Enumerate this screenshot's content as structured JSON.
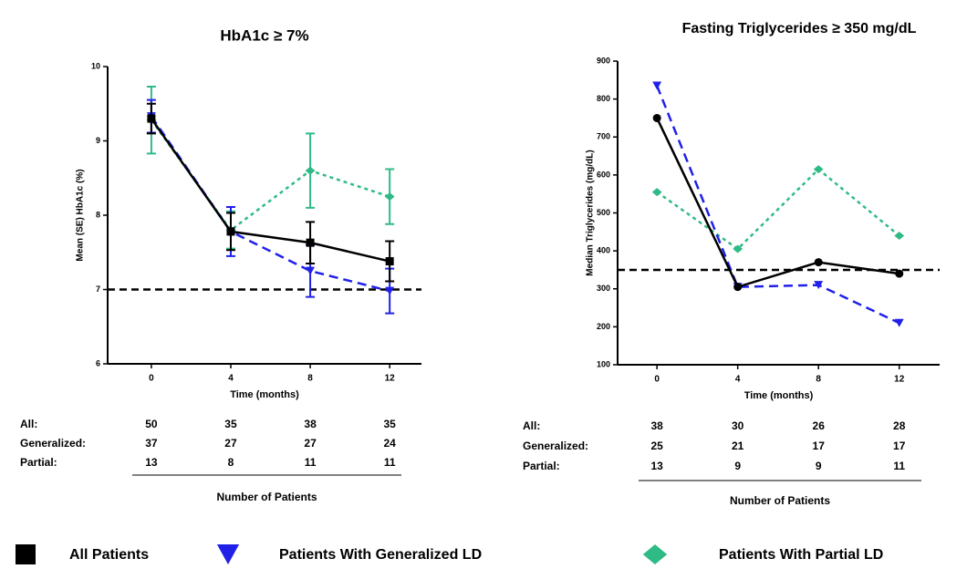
{
  "chart_data": [
    {
      "type": "line",
      "title": "HbA1c ≥ 7%",
      "x_label": "Time (months)",
      "y_label": "Mean (SE) HbA1c (%)",
      "x": [
        0,
        4,
        8,
        12
      ],
      "xlim": [
        -2.2,
        13.6
      ],
      "xticks": [
        0,
        4,
        8,
        12
      ],
      "ylim": [
        6,
        10
      ],
      "yticks": [
        6,
        7,
        8,
        9,
        10
      ],
      "reference_line": 7,
      "series": [
        {
          "name": "All Patients",
          "color": "#000000",
          "marker": "square",
          "line_style": "solid",
          "values": [
            9.3,
            7.78,
            7.63,
            7.38
          ],
          "errors": [
            0.2,
            0.25,
            0.28,
            0.27
          ]
        },
        {
          "name": "Patients With Generalized LD",
          "color": "#2020e8",
          "marker": "triangle-down",
          "line_style": "dashed",
          "values": [
            9.33,
            7.78,
            7.25,
            6.98
          ],
          "errors": [
            0.22,
            0.33,
            0.35,
            0.3
          ]
        },
        {
          "name": "Patients With Partial LD",
          "color": "#2fbb85",
          "marker": "diamond",
          "line_style": "dotted",
          "values": [
            9.28,
            7.8,
            8.6,
            8.25
          ],
          "errors": [
            0.45,
            0.25,
            0.5,
            0.37
          ]
        }
      ],
      "patients": {
        "title": "Number of Patients",
        "rows": [
          {
            "label": "All:",
            "values": [
              "50",
              "35",
              "38",
              "35"
            ]
          },
          {
            "label": "Generalized:",
            "values": [
              "37",
              "27",
              "27",
              "24"
            ]
          },
          {
            "label": "Partial:",
            "values": [
              "13",
              "8",
              "11",
              "11"
            ]
          }
        ]
      }
    },
    {
      "type": "line",
      "title": "Fasting Triglycerides ≥ 350 mg/dL",
      "x_label": "Time (months)",
      "y_label": "Median Triglycerides (mg/dL)",
      "x": [
        0,
        4,
        8,
        12
      ],
      "xlim": [
        -1.95,
        14
      ],
      "xticks": [
        0,
        4,
        8,
        12
      ],
      "ylim": [
        100,
        900
      ],
      "yticks": [
        100,
        200,
        300,
        400,
        500,
        600,
        700,
        800,
        900
      ],
      "reference_line": 350,
      "series": [
        {
          "color": "#000000",
          "marker": "circle",
          "line_style": "solid",
          "values": [
            750,
            305,
            370,
            340
          ]
        },
        {
          "color": "#2020e8",
          "marker": "triangle-down",
          "line_style": "dashed",
          "values": [
            835,
            305,
            310,
            210
          ]
        },
        {
          "color": "#2fbb85",
          "marker": "diamond",
          "line_style": "dotted",
          "values": [
            555,
            405,
            615,
            440
          ]
        }
      ],
      "patients": {
        "title": "Number of Patients",
        "rows": [
          {
            "label": "All:",
            "values": [
              "38",
              "30",
              "26",
              "28"
            ]
          },
          {
            "label": "Generalized:",
            "values": [
              "25",
              "21",
              "17",
              "17"
            ]
          },
          {
            "label": "Partial:",
            "values": [
              "13",
              "9",
              "9",
              "11"
            ]
          }
        ]
      }
    }
  ]
}
